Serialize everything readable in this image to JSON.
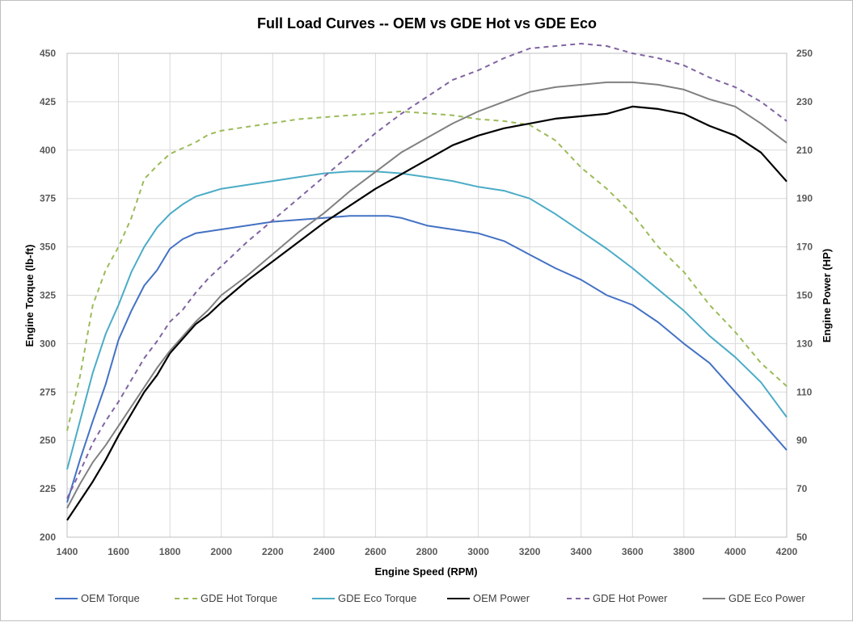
{
  "chart_data": {
    "type": "line",
    "title": "Full Load Curves -- OEM vs GDE Hot vs GDE Eco",
    "xlabel": "Engine Speed (RPM)",
    "ylabel": "Engine Torque (lb-ft)",
    "y2label": "Engine Power (HP)",
    "xlim": [
      1400,
      4200
    ],
    "ylim": [
      200,
      450
    ],
    "y2lim": [
      50,
      250
    ],
    "xticks": [
      "1400",
      "1600",
      "1800",
      "2000",
      "2200",
      "2400",
      "2600",
      "2800",
      "3000",
      "3200",
      "3400",
      "3600",
      "3800",
      "4000",
      "4200"
    ],
    "yticks": [
      "200",
      "225",
      "250",
      "275",
      "300",
      "325",
      "350",
      "375",
      "400",
      "425",
      "450"
    ],
    "y2ticks": [
      "50",
      "70",
      "90",
      "110",
      "130",
      "150",
      "170",
      "190",
      "210",
      "230",
      "250"
    ],
    "grid": true,
    "legend_position": "bottom",
    "series": [
      {
        "name": "OEM Torque",
        "axis": "left",
        "color": "#4472C4",
        "dash": "solid",
        "x": [
          1400,
          1450,
          1500,
          1550,
          1600,
          1650,
          1700,
          1750,
          1800,
          1850,
          1900,
          1950,
          2000,
          2100,
          2200,
          2300,
          2400,
          2500,
          2600,
          2650,
          2700,
          2800,
          2900,
          3000,
          3100,
          3200,
          3300,
          3400,
          3500,
          3600,
          3700,
          3800,
          3900,
          4000,
          4100,
          4200
        ],
        "values": [
          218,
          240,
          260,
          279,
          302,
          317,
          330,
          338,
          349,
          354,
          357,
          358,
          359,
          361,
          363,
          364,
          365,
          366,
          366,
          366,
          365,
          361,
          359,
          357,
          353,
          346,
          339,
          333,
          325,
          320,
          311,
          300,
          290,
          275,
          260,
          245
        ]
      },
      {
        "name": "GDE Hot Torque",
        "axis": "left",
        "color": "#9BBB59",
        "dash": "dashed",
        "x": [
          1400,
          1450,
          1500,
          1550,
          1600,
          1650,
          1700,
          1750,
          1800,
          1850,
          1900,
          1950,
          2000,
          2100,
          2200,
          2300,
          2400,
          2500,
          2600,
          2700,
          2800,
          2900,
          3000,
          3100,
          3200,
          3300,
          3400,
          3500,
          3600,
          3700,
          3800,
          3900,
          4000,
          4100,
          4200
        ],
        "values": [
          255,
          283,
          320,
          338,
          350,
          365,
          385,
          392,
          398,
          401,
          404,
          408,
          410,
          412,
          414,
          416,
          417,
          418,
          419,
          420,
          419,
          418,
          416,
          415,
          413,
          405,
          391,
          380,
          367,
          350,
          337,
          320,
          306,
          290,
          278
        ]
      },
      {
        "name": "GDE Eco Torque",
        "axis": "left",
        "color": "#4BACC6",
        "dash": "solid",
        "x": [
          1400,
          1450,
          1500,
          1550,
          1600,
          1650,
          1700,
          1750,
          1800,
          1850,
          1900,
          1950,
          2000,
          2100,
          2200,
          2300,
          2400,
          2500,
          2600,
          2700,
          2800,
          2900,
          3000,
          3100,
          3200,
          3300,
          3400,
          3500,
          3600,
          3700,
          3800,
          3900,
          4000,
          4100,
          4200
        ],
        "values": [
          235,
          260,
          285,
          305,
          320,
          337,
          350,
          360,
          367,
          372,
          376,
          378,
          380,
          382,
          384,
          386,
          388,
          389,
          389,
          388,
          386,
          384,
          381,
          379,
          375,
          367,
          358,
          349,
          339,
          328,
          317,
          304,
          293,
          280,
          262
        ]
      },
      {
        "name": "OEM Power",
        "axis": "right",
        "color": "#000000",
        "dash": "solid",
        "x": [
          1400,
          1450,
          1500,
          1550,
          1600,
          1650,
          1700,
          1750,
          1800,
          1850,
          1900,
          1950,
          2000,
          2100,
          2200,
          2300,
          2400,
          2500,
          2600,
          2700,
          2800,
          2900,
          3000,
          3100,
          3200,
          3300,
          3400,
          3500,
          3600,
          3700,
          3800,
          3900,
          4000,
          4100,
          4200
        ],
        "values": [
          57,
          65,
          73,
          82,
          92,
          101,
          110,
          117,
          126,
          132,
          138,
          142,
          147,
          156,
          164,
          172,
          180,
          187,
          194,
          200,
          206,
          212,
          216,
          219,
          221,
          223,
          224,
          225,
          228,
          227,
          225,
          220,
          216,
          209,
          197
        ]
      },
      {
        "name": "GDE Hot Power",
        "axis": "right",
        "color": "#8064A2",
        "dash": "dashed",
        "x": [
          1400,
          1450,
          1500,
          1550,
          1600,
          1650,
          1700,
          1750,
          1800,
          1850,
          1900,
          1950,
          2000,
          2100,
          2200,
          2300,
          2400,
          2500,
          2600,
          2700,
          2800,
          2900,
          3000,
          3100,
          3200,
          3300,
          3400,
          3500,
          3600,
          3700,
          3800,
          3900,
          4000,
          4100,
          4200
        ],
        "values": [
          66,
          77,
          89,
          98,
          106,
          115,
          124,
          131,
          139,
          144,
          151,
          157,
          162,
          172,
          181,
          190,
          199,
          208,
          217,
          225,
          232,
          239,
          243,
          248,
          252,
          253,
          254,
          253,
          250,
          248,
          245,
          240,
          236,
          230,
          222
        ]
      },
      {
        "name": "GDE Eco Power",
        "axis": "right",
        "color": "#808080",
        "dash": "solid",
        "x": [
          1400,
          1450,
          1500,
          1550,
          1600,
          1650,
          1700,
          1750,
          1800,
          1850,
          1900,
          1950,
          2000,
          2100,
          2200,
          2300,
          2400,
          2500,
          2600,
          2700,
          2800,
          2900,
          3000,
          3100,
          3200,
          3300,
          3400,
          3500,
          3600,
          3700,
          3800,
          3900,
          4000,
          4100,
          4200
        ],
        "values": [
          62,
          72,
          81,
          88,
          96,
          104,
          112,
          120,
          127,
          133,
          139,
          144,
          150,
          158,
          167,
          176,
          184,
          193,
          201,
          209,
          215,
          221,
          226,
          230,
          234,
          236,
          237,
          238,
          238,
          237,
          235,
          231,
          228,
          221,
          213
        ]
      }
    ]
  }
}
